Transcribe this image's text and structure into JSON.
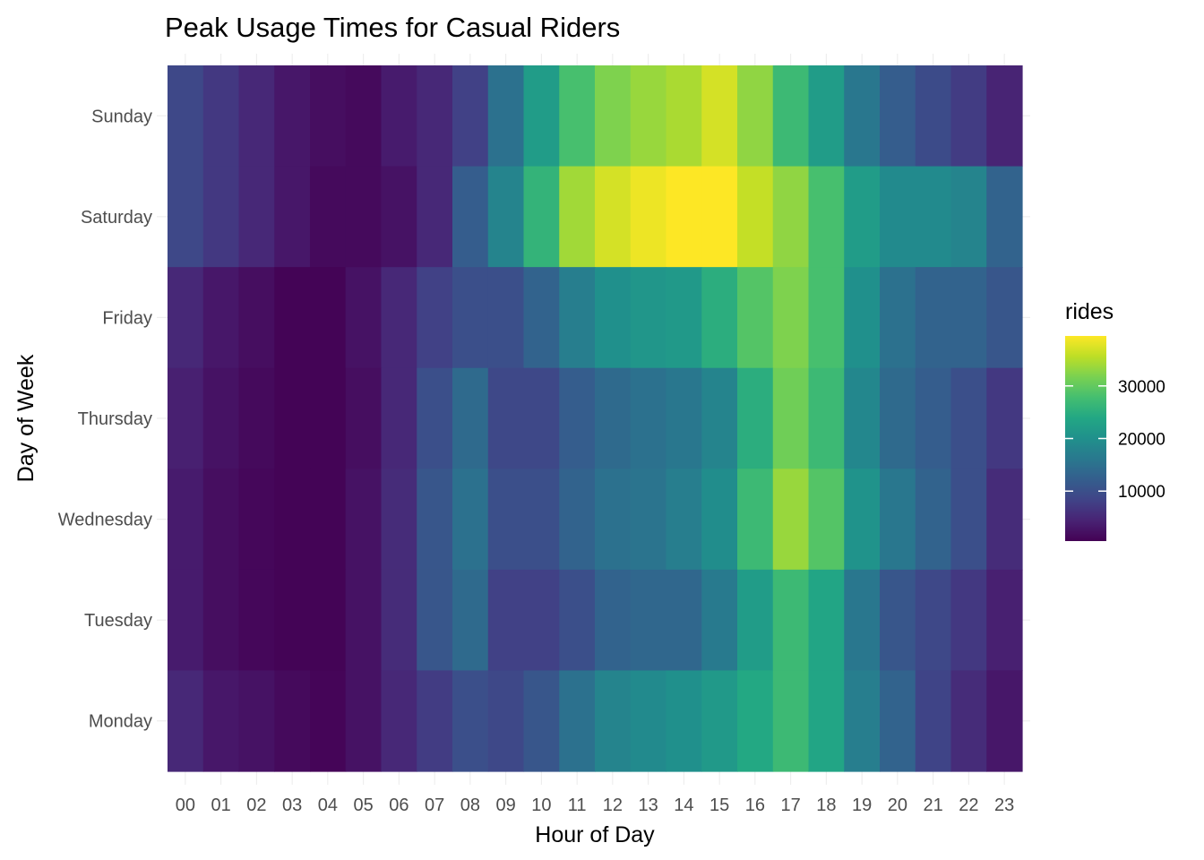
{
  "chart_data": {
    "type": "heatmap",
    "title": "Peak Usage Times for Casual Riders",
    "xlabel": "Hour of Day",
    "ylabel": "Day of Week",
    "x": [
      "00",
      "01",
      "02",
      "03",
      "04",
      "05",
      "06",
      "07",
      "08",
      "09",
      "10",
      "11",
      "12",
      "13",
      "14",
      "15",
      "16",
      "17",
      "18",
      "19",
      "20",
      "21",
      "22",
      "23"
    ],
    "y": [
      "Sunday",
      "Saturday",
      "Friday",
      "Thursday",
      "Wednesday",
      "Tuesday",
      "Monday"
    ],
    "values": [
      [
        9000,
        7000,
        5000,
        3000,
        2000,
        1500,
        3500,
        5000,
        8000,
        15000,
        22000,
        28000,
        32000,
        33500,
        34500,
        37000,
        33000,
        27000,
        22000,
        16000,
        12000,
        9500,
        7500,
        4500
      ],
      [
        9000,
        7000,
        5000,
        3000,
        1500,
        1500,
        2500,
        5000,
        12000,
        18000,
        26000,
        34000,
        37000,
        38500,
        39500,
        39500,
        36000,
        33000,
        28000,
        22000,
        19000,
        19000,
        18000,
        13000
      ],
      [
        5000,
        3000,
        2000,
        800,
        800,
        2500,
        5000,
        8000,
        10000,
        10000,
        13000,
        17000,
        20000,
        21000,
        21500,
        25000,
        29000,
        32000,
        28000,
        20000,
        15000,
        13000,
        13000,
        11000
      ],
      [
        4000,
        2500,
        1500,
        800,
        800,
        2000,
        5000,
        10000,
        14000,
        9000,
        9000,
        12000,
        14000,
        15000,
        16000,
        18000,
        25000,
        31000,
        27000,
        18500,
        14000,
        12000,
        10000,
        7000
      ],
      [
        3500,
        2000,
        1200,
        800,
        800,
        2500,
        5500,
        11000,
        15000,
        10000,
        10000,
        13000,
        15000,
        15500,
        17000,
        19500,
        27000,
        33500,
        29000,
        20500,
        16000,
        13000,
        10000,
        5500
      ],
      [
        3500,
        2000,
        1200,
        800,
        800,
        2500,
        5500,
        11000,
        14000,
        8000,
        8000,
        10000,
        13000,
        13500,
        13500,
        16500,
        22000,
        27000,
        23500,
        16000,
        11000,
        9000,
        7000,
        4000
      ],
      [
        5000,
        3000,
        2500,
        1500,
        1000,
        2500,
        5000,
        7500,
        10000,
        9000,
        11000,
        15000,
        18000,
        19000,
        20000,
        21500,
        24000,
        27000,
        23500,
        17000,
        13000,
        8500,
        5500,
        3000
      ]
    ],
    "legend": {
      "title": "rides",
      "ticks": [
        10000,
        20000,
        30000
      ],
      "tick_labels": [
        "10000",
        "20000",
        "30000"
      ],
      "min": 500,
      "max": 39500,
      "position": "right",
      "colormap": "viridis"
    },
    "grid": true
  }
}
